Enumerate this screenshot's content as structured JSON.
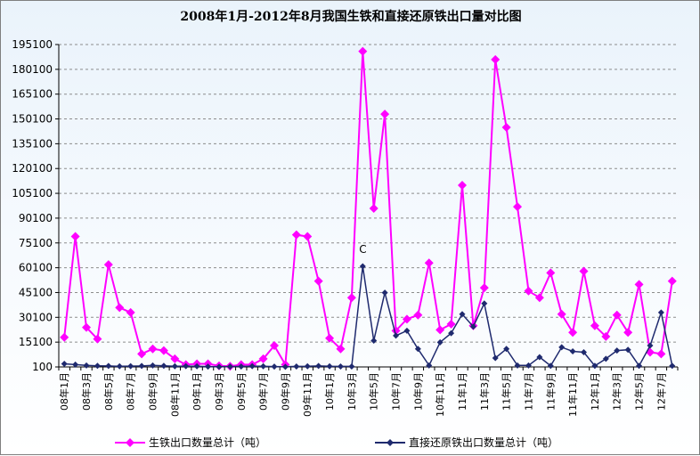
{
  "chart_data": {
    "type": "line",
    "title": "2008年1月-2012年8月我国生铁和直接还原铁出口量对比图",
    "xlabel": "",
    "ylabel": "",
    "ylim": [
      100,
      195100
    ],
    "yticks": [
      100,
      15100,
      30100,
      45100,
      60100,
      75100,
      90100,
      105100,
      120100,
      135100,
      150100,
      165100,
      180100,
      195100
    ],
    "ytick_labels": [
      "100",
      "15100",
      "30100",
      "45100",
      "60100",
      "75100",
      "90100",
      "105100",
      "120100",
      "135100",
      "150100",
      "165100",
      "180100",
      "195100"
    ],
    "x": [
      "08年1月",
      "08年2月",
      "08年3月",
      "08年4月",
      "08年5月",
      "08年6月",
      "08年7月",
      "08年8月",
      "08年9月",
      "08年10月",
      "08年11月",
      "08年12月",
      "09年1月",
      "09年2月",
      "09年3月",
      "09年4月",
      "09年5月",
      "09年6月",
      "09年7月",
      "09年8月",
      "09年9月",
      "09年10月",
      "09年11月",
      "09年12月",
      "10年1月",
      "10年2月",
      "10年3月",
      "10年4月",
      "10年5月",
      "10年6月",
      "10年7月",
      "10年8月",
      "10年9月",
      "10年10月",
      "10年11月",
      "10年12月",
      "11年1月",
      "11年2月",
      "11年3月",
      "11年4月",
      "11年5月",
      "11年6月",
      "11年7月",
      "11年8月",
      "11年9月",
      "11年10月",
      "11年11月",
      "11年12月",
      "12年1月",
      "12年2月",
      "12年3月",
      "12年4月",
      "12年5月",
      "12年6月",
      "12年7月",
      "12年8月"
    ],
    "xtick_labels": [
      "08年1月",
      "08年3月",
      "08年5月",
      "08年7月",
      "08年9月",
      "08年11月",
      "09年1月",
      "09年3月",
      "09年5月",
      "09年7月",
      "09年9月",
      "09年11月",
      "10年1月",
      "10年3月",
      "10年5月",
      "10年7月",
      "10年9月",
      "10年11月",
      "11年1月",
      "11年3月",
      "11年5月",
      "11年7月",
      "11年9月",
      "11年11月",
      "12年1月",
      "12年3月",
      "12年5月",
      "12年7月"
    ],
    "series": [
      {
        "name": "生铁出口数量总计（吨）",
        "color": "#ff00ff",
        "marker": "diamond",
        "values": [
          18000,
          79000,
          24000,
          17000,
          62000,
          36000,
          33000,
          8000,
          11000,
          10000,
          5000,
          1500,
          2000,
          2000,
          800,
          500,
          1500,
          1500,
          5000,
          13000,
          1500,
          80000,
          79000,
          52000,
          17500,
          11000,
          42000,
          191000,
          96000,
          153000,
          22000,
          29000,
          31500,
          63000,
          22500,
          26000,
          110000,
          25000,
          48000,
          186000,
          145000,
          97000,
          46000,
          42000,
          57000,
          32000,
          21000,
          58000,
          25000,
          18500,
          31500,
          21000,
          50000,
          9000,
          8000,
          52000
        ]
      },
      {
        "name": "直接还原铁出口数量总计（吨）",
        "color": "#1f2a6e",
        "marker": "diamond",
        "values": [
          2000,
          1500,
          1000,
          800,
          700,
          500,
          600,
          700,
          1000,
          800,
          500,
          600,
          500,
          300,
          200,
          300,
          400,
          600,
          500,
          300,
          200,
          400,
          500,
          700,
          500,
          400,
          400,
          61000,
          16000,
          45000,
          19000,
          22000,
          11000,
          1000,
          15000,
          20500,
          32000,
          24500,
          38500,
          5500,
          11000,
          1000,
          1000,
          6000,
          800,
          12000,
          9500,
          9000,
          800,
          5000,
          10000,
          10500,
          800,
          13000,
          33000,
          800
        ]
      }
    ],
    "annotations": [
      {
        "text": "C",
        "x": "10年4月",
        "series": 1
      }
    ],
    "grid": "horizontal dashed",
    "legend": "bottom"
  }
}
